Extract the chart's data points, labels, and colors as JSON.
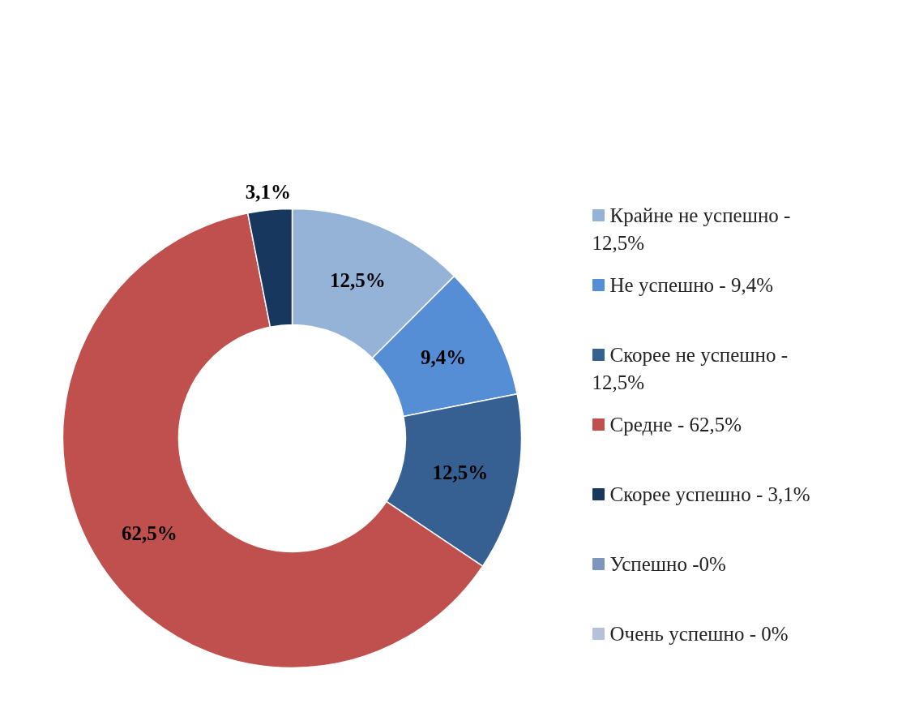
{
  "chart_data": {
    "type": "donut",
    "categories": [
      "Крайне не успешно - 12,5%",
      "Не успешно - 9,4%",
      "Скорее не успешно - 12,5%",
      "Средне - 62,5%",
      "Скорее успешно - 3,1%",
      "Успешно -0%",
      "Очень успешно - 0%"
    ],
    "values": [
      12.5,
      9.4,
      12.5,
      62.5,
      3.1,
      0,
      0
    ],
    "colors": [
      "#95b3d7",
      "#558ed5",
      "#376092",
      "#c0504d",
      "#17375e",
      "#7f95bb",
      "#b5c1d9"
    ],
    "value_labels": [
      "12,5%",
      "9,4%",
      "12,5%",
      "62,5%",
      "3,1%",
      null,
      null
    ],
    "legend": "right"
  }
}
